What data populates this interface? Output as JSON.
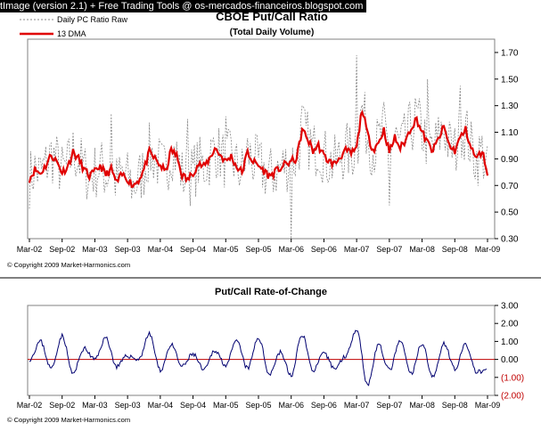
{
  "banner": "tImage (version 2.1) + Free Trading Tools @ os-mercados-financeiros.blogspot.com",
  "colors": {
    "raw": "#888888",
    "dma": "#e00000",
    "roc": "#000070",
    "zero": "#c00000",
    "frame": "#808080",
    "text": "#000000",
    "neg": "#c00000"
  },
  "chart_data": [
    {
      "type": "line",
      "title": "CBOE Put/Call Ratio",
      "subtitle": "(Total Daily Volume)",
      "legend": [
        "Daily PC Ratio Raw",
        "13 DMA"
      ],
      "legend_position": "top-left",
      "x_ticks": [
        "Mar-02",
        "Sep-02",
        "Mar-03",
        "Sep-03",
        "Mar-04",
        "Sep-04",
        "Mar-05",
        "Sep-05",
        "Mar-06",
        "Sep-06",
        "Mar-07",
        "Sep-07",
        "Mar-08",
        "Sep-08",
        "Mar-09"
      ],
      "y_ticks": [
        "0.30",
        "0.50",
        "0.70",
        "0.90",
        "1.10",
        "1.30",
        "1.50",
        "1.70"
      ],
      "ylim": [
        0.3,
        1.8
      ],
      "copyright": "© Copyright 2009 Market-Harmonics.com",
      "series": [
        {
          "name": "13 DMA",
          "x_month_index": [
            0,
            1,
            2,
            3,
            4,
            5,
            6,
            7,
            8,
            9,
            10,
            11,
            12,
            13,
            14,
            15,
            16,
            17,
            18,
            19,
            20,
            21,
            22,
            23,
            24,
            25,
            26,
            27,
            28,
            29,
            30,
            31,
            32,
            33,
            34,
            35,
            36,
            37,
            38,
            39,
            40,
            41,
            42,
            43,
            44,
            45,
            46,
            47,
            48,
            49,
            50,
            51,
            52,
            53,
            54,
            55,
            56,
            57,
            58,
            59,
            60,
            61,
            62,
            63,
            64,
            65,
            66,
            67,
            68,
            69,
            70,
            71,
            72,
            73,
            74,
            75,
            76,
            77,
            78,
            79,
            80,
            81,
            82,
            83,
            84
          ],
          "values": [
            0.75,
            0.82,
            0.79,
            0.85,
            0.93,
            0.88,
            0.8,
            0.84,
            0.95,
            0.9,
            0.82,
            0.77,
            0.8,
            0.85,
            0.78,
            0.82,
            0.72,
            0.78,
            0.75,
            0.7,
            0.74,
            0.82,
            0.95,
            0.9,
            0.85,
            0.8,
            0.97,
            0.92,
            0.78,
            0.74,
            0.8,
            0.86,
            0.84,
            0.9,
            0.98,
            0.93,
            0.88,
            0.92,
            0.84,
            0.8,
            0.95,
            0.88,
            0.85,
            0.81,
            0.77,
            0.8,
            0.83,
            0.86,
            0.88,
            0.9,
            1.12,
            1.05,
            0.96,
            1.0,
            0.92,
            0.88,
            0.86,
            0.92,
            0.96,
            0.94,
            0.98,
            1.28,
            1.08,
            0.97,
            1.02,
            1.12,
            0.95,
            1.06,
            0.98,
            1.04,
            1.14,
            1.2,
            1.1,
            1.02,
            0.96,
            1.05,
            1.14,
            1.0,
            0.96,
            1.06,
            1.12,
            0.98,
            0.9,
            0.96,
            0.8
          ]
        },
        {
          "name": "Daily PC Ratio Raw",
          "amplitude_note": "",
          "spikes": [
            {
              "x_month_index": 15,
              "value": 1.24
            },
            {
              "x_month_index": 29,
              "value": 1.2
            },
            {
              "x_month_index": 36,
              "value": 1.22
            },
            {
              "x_month_index": 48,
              "value": 0.3
            },
            {
              "x_month_index": 50,
              "value": 1.3
            },
            {
              "x_month_index": 60,
              "value": 1.68
            },
            {
              "x_month_index": 66,
              "value": 0.55
            },
            {
              "x_month_index": 73,
              "value": 1.5
            },
            {
              "x_month_index": 79,
              "value": 1.45
            }
          ]
        }
      ]
    },
    {
      "type": "line",
      "title": "Put/Call Rate-of-Change",
      "x_ticks": [
        "Mar-02",
        "Sep-02",
        "Mar-03",
        "Sep-03",
        "Mar-04",
        "Sep-04",
        "Mar-05",
        "Sep-05",
        "Mar-06",
        "Sep-06",
        "Mar-07",
        "Sep-07",
        "Mar-08",
        "Sep-08",
        "Mar-09"
      ],
      "y_ticks": [
        "3.00",
        "2.00",
        "1.00",
        "0.00",
        "(1.00)",
        "(2.00)"
      ],
      "ylim": [
        -2.0,
        3.0
      ],
      "copyright": "© Copyright 2009 Market-Harmonics.com",
      "series": [
        {
          "name": "",
          "x_month_index": [
            0,
            2,
            4,
            6,
            8,
            10,
            12,
            14,
            16,
            18,
            20,
            22,
            24,
            26,
            28,
            30,
            32,
            34,
            36,
            38,
            40,
            42,
            44,
            46,
            48,
            50,
            52,
            54,
            56,
            58,
            60,
            62,
            64,
            66,
            68,
            70,
            72,
            74,
            76,
            78,
            80,
            82,
            84
          ],
          "values": [
            0.0,
            1.0,
            -0.5,
            1.3,
            -0.8,
            0.6,
            0.0,
            1.2,
            -0.4,
            0.2,
            0.0,
            1.4,
            -0.6,
            0.8,
            -0.4,
            0.3,
            -0.6,
            0.5,
            -0.3,
            1.0,
            -0.5,
            1.2,
            -0.8,
            0.4,
            -0.9,
            1.4,
            -0.6,
            0.3,
            -0.5,
            0.2,
            1.7,
            -1.4,
            0.8,
            -0.6,
            1.0,
            -0.8,
            0.9,
            -1.0,
            0.9,
            -0.5,
            0.8,
            -0.7,
            -0.6
          ]
        }
      ]
    }
  ]
}
